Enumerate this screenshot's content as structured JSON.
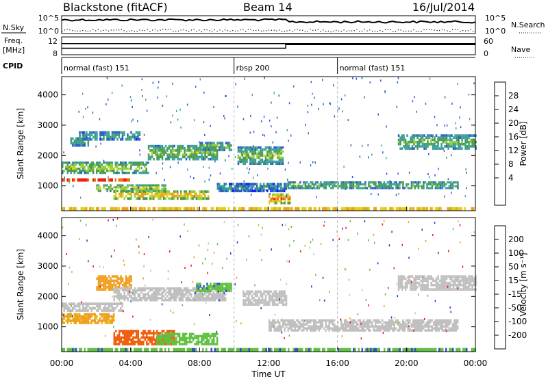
{
  "header": {
    "station": "Blackstone (fitACF)",
    "beam": "Beam 14",
    "date": "16/Jul/2014"
  },
  "status_panels": {
    "noise": {
      "left_label": "N.Sky",
      "left_ticks": [
        "10^5",
        "10^0"
      ],
      "right_label": "N.Search",
      "right_ticks": [
        "10^5",
        "10^0"
      ]
    },
    "frequency": {
      "left_label_1": "Freq.",
      "left_label_2": "[MHz]",
      "left_ticks": [
        "12",
        "8"
      ],
      "right_label": "Nave",
      "right_ticks": [
        "60",
        "0"
      ],
      "freq_mhz_level": 10.5,
      "nave_before_change": 22,
      "nave_after_change": 34
    },
    "cpid": {
      "label": "CPID",
      "segments": [
        {
          "name": "normal (fast) 151",
          "start_hour": 0,
          "end_hour": 10
        },
        {
          "name": "rbsp 200",
          "start_hour": 10,
          "end_hour": 16
        },
        {
          "name": "normal (fast) 151",
          "start_hour": 16,
          "end_hour": 24
        }
      ]
    }
  },
  "chart_data": [
    {
      "type": "heatmap",
      "quantity": "Power",
      "ylabel": "Slant Range [km]",
      "xlabel": "Time UT",
      "ylim": [
        180,
        4600
      ],
      "xlim_hours": [
        0,
        24
      ],
      "y_ticks": [
        "1000",
        "2000",
        "3000",
        "4000"
      ],
      "x_ticks": [
        "00:00",
        "04:00",
        "08:00",
        "12:00",
        "16:00",
        "20:00",
        "00:00"
      ],
      "colorbar": {
        "label": "Power [dB]",
        "ticks": [
          "4",
          "8",
          "12",
          "16",
          "20",
          "24",
          "28"
        ],
        "colors": [
          "#1a1aff",
          "#2c5bd0",
          "#3aa0a0",
          "#4c9a4c",
          "#8ed040",
          "#e0d020",
          "#f0a020",
          "#f07010",
          "#f02010"
        ]
      },
      "bands": [
        {
          "start": 0.0,
          "end": 4.0,
          "range_start": 1150,
          "range_end": 1250,
          "intensity": 0.9
        },
        {
          "start": 0.0,
          "end": 5.0,
          "range_start": 1400,
          "range_end": 1800,
          "intensity": 0.55
        },
        {
          "start": 0.5,
          "end": 1.5,
          "range_start": 2300,
          "range_end": 2600,
          "intensity": 0.4
        },
        {
          "start": 1.0,
          "end": 4.5,
          "range_start": 2500,
          "range_end": 2800,
          "intensity": 0.35
        },
        {
          "start": 2.0,
          "end": 6.0,
          "range_start": 800,
          "range_end": 1050,
          "intensity": 0.6
        },
        {
          "start": 3.0,
          "end": 8.5,
          "range_start": 550,
          "range_end": 850,
          "intensity": 0.75
        },
        {
          "start": 5.0,
          "end": 9.0,
          "range_start": 1850,
          "range_end": 2350,
          "intensity": 0.5
        },
        {
          "start": 8.0,
          "end": 9.8,
          "range_start": 2150,
          "range_end": 2450,
          "intensity": 0.45
        },
        {
          "start": 9.0,
          "end": 13.0,
          "range_start": 800,
          "range_end": 1100,
          "intensity": 0.3
        },
        {
          "start": 10.2,
          "end": 12.8,
          "range_start": 1700,
          "range_end": 2300,
          "intensity": 0.5
        },
        {
          "start": 12.0,
          "end": 13.2,
          "range_start": 400,
          "range_end": 750,
          "intensity": 0.85
        },
        {
          "start": 13.0,
          "end": 23.0,
          "range_start": 900,
          "range_end": 1150,
          "intensity": 0.45
        },
        {
          "start": 19.5,
          "end": 24.0,
          "range_start": 2200,
          "range_end": 2700,
          "intensity": 0.45
        },
        {
          "start": 0.0,
          "end": 24.0,
          "range_start": 200,
          "range_end": 300,
          "intensity": 0.65
        }
      ]
    },
    {
      "type": "heatmap",
      "quantity": "Velocity",
      "ylabel": "Slant Range [km]",
      "xlabel": "Time UT",
      "ylim": [
        180,
        4600
      ],
      "xlim_hours": [
        0,
        24
      ],
      "y_ticks": [
        "1000",
        "2000",
        "3000",
        "4000"
      ],
      "x_ticks": [
        "00:00",
        "04:00",
        "08:00",
        "12:00",
        "16:00",
        "20:00",
        "00:00"
      ],
      "colorbar": {
        "label": "Velocity [m s⁻¹]",
        "ticks": [
          "200",
          "100",
          "50",
          "15",
          "-15",
          "-50",
          "-100",
          "-200"
        ],
        "colors": [
          "#2030c0",
          "#3050d0",
          "#208060",
          "#60c040",
          "#c0c0c0",
          "#e0d020",
          "#f0a020",
          "#f06010",
          "#f01010"
        ]
      },
      "bands": [
        {
          "start": 0.0,
          "end": 3.5,
          "range_start": 1500,
          "range_end": 1800,
          "velocity": 0
        },
        {
          "start": 0.0,
          "end": 3.0,
          "range_start": 1100,
          "range_end": 1450,
          "velocity": -60
        },
        {
          "start": 2.0,
          "end": 4.0,
          "range_start": 2200,
          "range_end": 2700,
          "velocity": -80
        },
        {
          "start": 3.0,
          "end": 9.5,
          "range_start": 1850,
          "range_end": 2300,
          "velocity": 0
        },
        {
          "start": 7.8,
          "end": 9.8,
          "range_start": 2150,
          "range_end": 2450,
          "velocity": 40
        },
        {
          "start": 3.0,
          "end": 6.5,
          "range_start": 400,
          "range_end": 900,
          "velocity": -150
        },
        {
          "start": 5.5,
          "end": 9.0,
          "range_start": 400,
          "range_end": 800,
          "velocity": 30
        },
        {
          "start": 10.5,
          "end": 13.0,
          "range_start": 1700,
          "range_end": 2200,
          "velocity": 0
        },
        {
          "start": 12.0,
          "end": 23.0,
          "range_start": 850,
          "range_end": 1250,
          "velocity": 0
        },
        {
          "start": 19.5,
          "end": 24.0,
          "range_start": 2200,
          "range_end": 2700,
          "velocity": 0
        },
        {
          "start": 0.0,
          "end": 24.0,
          "range_start": 200,
          "range_end": 300,
          "velocity": 40
        }
      ]
    }
  ]
}
